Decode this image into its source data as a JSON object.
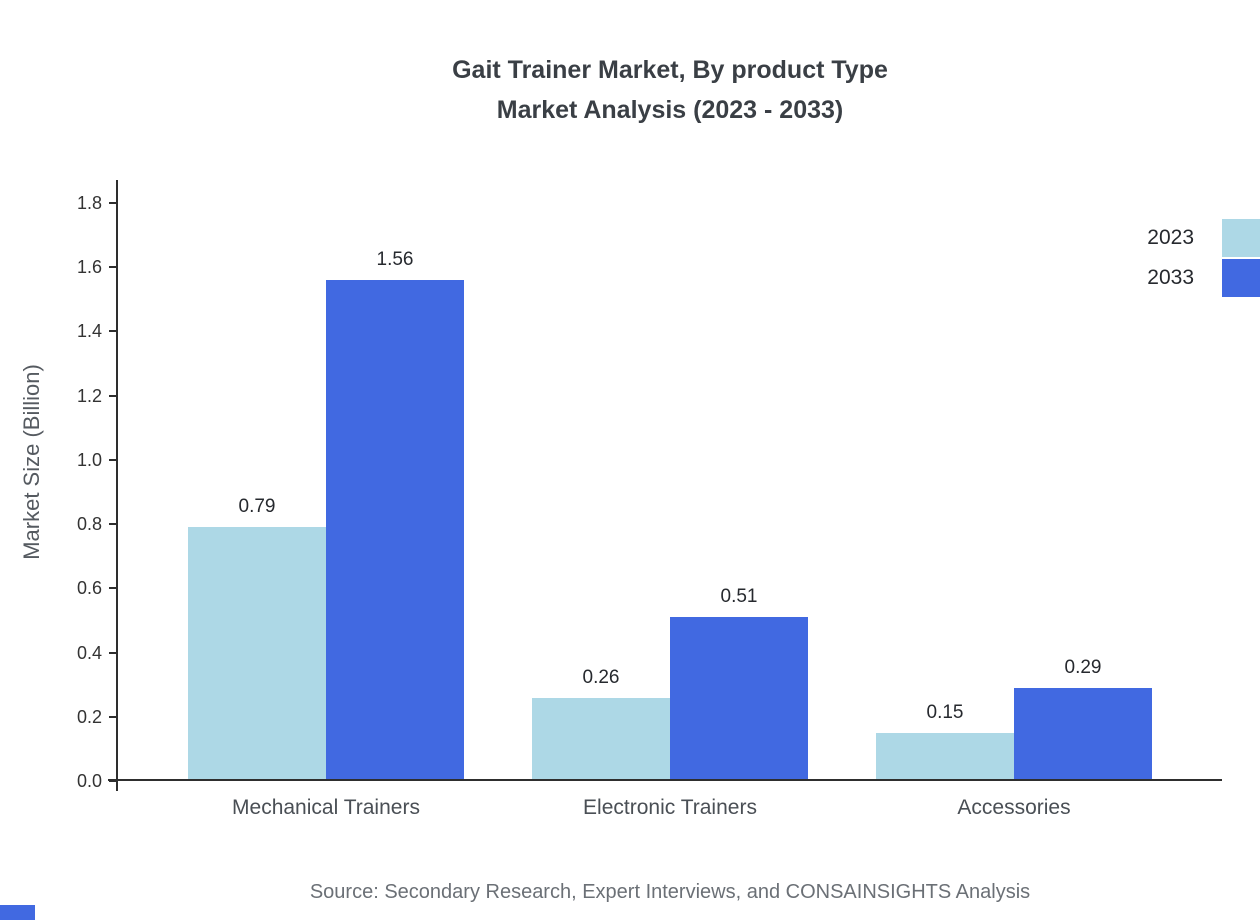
{
  "title": {
    "line1": "Gait Trainer Market, By product Type",
    "line2": "Market Analysis (2023 - 2033)"
  },
  "source": "Source: Secondary Research, Expert Interviews, and CONSAINSIGHTS Analysis",
  "chart_data": {
    "type": "bar",
    "categories": [
      "Mechanical Trainers",
      "Electronic Trainers",
      "Accessories"
    ],
    "series": [
      {
        "name": "2023",
        "color": "#ADD8E6",
        "values": [
          0.79,
          0.26,
          0.15
        ]
      },
      {
        "name": "2033",
        "color": "#4169E1",
        "values": [
          1.56,
          0.51,
          0.29
        ]
      }
    ],
    "title": "Gait Trainer Market, By product Type Market Analysis (2023 - 2033)",
    "xlabel": "",
    "ylabel": "Market Size (Billion)",
    "ylim": [
      0,
      1.8
    ],
    "yticks": [
      0.0,
      0.2,
      0.4,
      0.6,
      0.8,
      1.0,
      1.2,
      1.4,
      1.6,
      1.8
    ],
    "grid": false,
    "legend_position": "top-right",
    "value_labels": true
  },
  "colors": {
    "title": "#3a3f45",
    "axis": "#2e2e2e",
    "tick_label": "#333333",
    "category_label": "#4a4f55",
    "value_label": "#26292e",
    "source_text": "#6b7076",
    "brand_mark": "#4169E1",
    "series_2023": "#ADD8E6",
    "series_2033": "#4169E1"
  }
}
